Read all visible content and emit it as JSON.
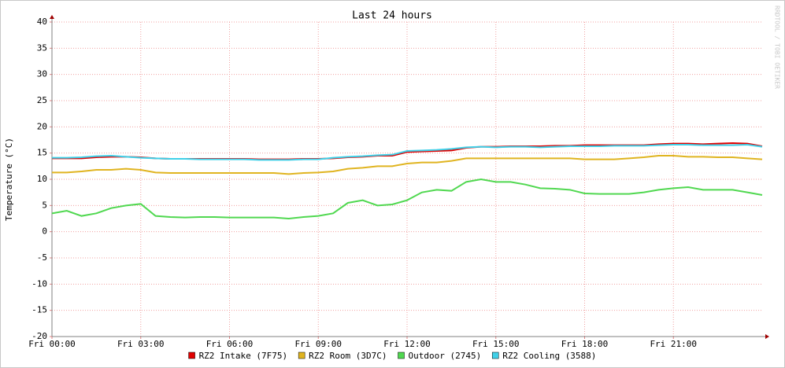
{
  "chart_data": {
    "type": "line",
    "title": "Last 24 hours",
    "y_label": "Temperature (°C)",
    "watermark": "RRDTOOL / TOBI OETIKER",
    "x": [
      0,
      0.5,
      1,
      1.5,
      2,
      2.5,
      3,
      3.5,
      4,
      4.5,
      5,
      5.5,
      6,
      6.5,
      7,
      7.5,
      8,
      8.5,
      9,
      9.5,
      10,
      10.5,
      11,
      11.5,
      12,
      12.5,
      13,
      13.5,
      14,
      14.5,
      15,
      15.5,
      16,
      16.5,
      17,
      17.5,
      18,
      18.5,
      19,
      19.5,
      20,
      20.5,
      21,
      21.5,
      22,
      22.5,
      23,
      23.5,
      24
    ],
    "xlim": [
      0,
      24
    ],
    "xticks": [
      {
        "value": 0,
        "label": "Fri 00:00"
      },
      {
        "value": 3,
        "label": "Fri 03:00"
      },
      {
        "value": 6,
        "label": "Fri 06:00"
      },
      {
        "value": 9,
        "label": "Fri 09:00"
      },
      {
        "value": 12,
        "label": "Fri 12:00"
      },
      {
        "value": 15,
        "label": "Fri 15:00"
      },
      {
        "value": 18,
        "label": "Fri 18:00"
      },
      {
        "value": 21,
        "label": "Fri 21:00"
      }
    ],
    "ylim": [
      -20,
      40
    ],
    "yticks": [
      -20,
      -15,
      -10,
      -5,
      0,
      5,
      10,
      15,
      20,
      25,
      30,
      35,
      40
    ],
    "grid": true,
    "legend": "bottom",
    "series": [
      {
        "name": "RZ2 Intake (7F75)",
        "color": "#e00000",
        "values": [
          14,
          14,
          14,
          14.2,
          14.3,
          14.3,
          14.2,
          14,
          13.9,
          13.9,
          13.9,
          13.9,
          13.9,
          13.9,
          13.8,
          13.8,
          13.8,
          13.9,
          13.9,
          14,
          14.2,
          14.3,
          14.5,
          14.5,
          15.2,
          15.3,
          15.4,
          15.5,
          16,
          16.2,
          16.2,
          16.3,
          16.3,
          16.3,
          16.4,
          16.4,
          16.5,
          16.5,
          16.5,
          16.5,
          16.5,
          16.7,
          16.8,
          16.8,
          16.7,
          16.8,
          16.9,
          16.8,
          16.3
        ]
      },
      {
        "name": "RZ2 Room (3D7C)",
        "color": "#e0b420",
        "values": [
          11.3,
          11.3,
          11.5,
          11.8,
          11.8,
          12,
          11.8,
          11.3,
          11.2,
          11.2,
          11.2,
          11.2,
          11.2,
          11.2,
          11.2,
          11.2,
          11,
          11.2,
          11.3,
          11.5,
          12,
          12.2,
          12.5,
          12.5,
          13,
          13.2,
          13.2,
          13.5,
          14,
          14,
          14,
          14,
          14,
          14,
          14,
          14,
          13.8,
          13.8,
          13.8,
          14,
          14.2,
          14.5,
          14.5,
          14.3,
          14.3,
          14.2,
          14.2,
          14,
          13.8
        ]
      },
      {
        "name": "Outdoor (2745)",
        "color": "#50d850",
        "values": [
          3.5,
          4,
          3,
          3.5,
          4.5,
          5,
          5.3,
          3,
          2.8,
          2.7,
          2.8,
          2.8,
          2.7,
          2.7,
          2.7,
          2.7,
          2.5,
          2.8,
          3,
          3.5,
          5.5,
          6,
          5,
          5.2,
          6,
          7.5,
          8,
          7.8,
          9.5,
          10,
          9.5,
          9.5,
          9,
          8.3,
          8.2,
          8,
          7.3,
          7.2,
          7.2,
          7.2,
          7.5,
          8,
          8.3,
          8.5,
          8,
          8,
          8,
          7.5,
          7
        ]
      },
      {
        "name": "RZ2 Cooling (3588)",
        "color": "#40d0e8",
        "values": [
          14.1,
          14.1,
          14.2,
          14.4,
          14.5,
          14.3,
          14.1,
          14,
          13.9,
          13.9,
          13.8,
          13.8,
          13.8,
          13.8,
          13.7,
          13.7,
          13.7,
          13.8,
          13.8,
          14.1,
          14.3,
          14.4,
          14.6,
          14.7,
          15.4,
          15.5,
          15.6,
          15.8,
          16.1,
          16.2,
          16.1,
          16.2,
          16.2,
          16.1,
          16.2,
          16.3,
          16.3,
          16.3,
          16.4,
          16.4,
          16.4,
          16.5,
          16.6,
          16.6,
          16.5,
          16.5,
          16.5,
          16.6,
          16.2
        ]
      }
    ]
  }
}
